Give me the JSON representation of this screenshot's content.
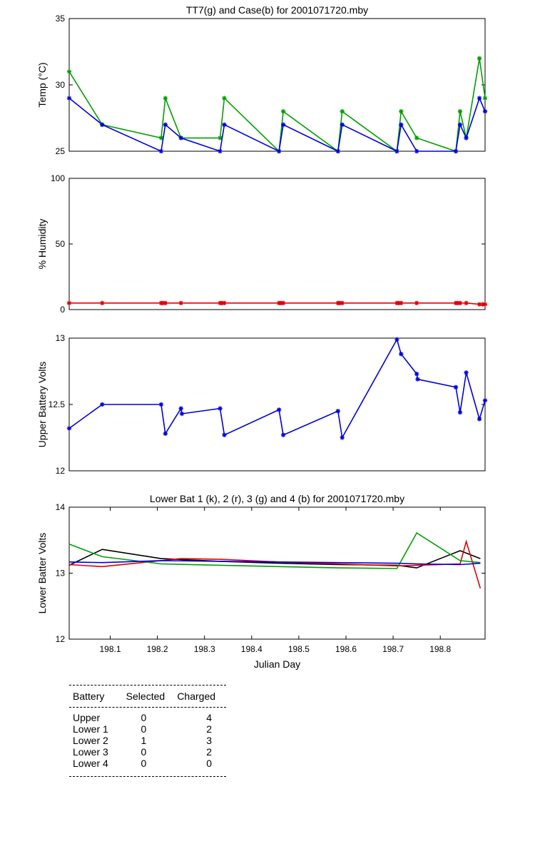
{
  "chart_data": [
    {
      "type": "line",
      "title": "TT7(g) and Case(b) for 2001071720.mby",
      "ylabel": "Temp  (°C)",
      "xlabel": "",
      "xlim": [
        198.013,
        198.895
      ],
      "ylim": [
        25,
        35
      ],
      "yticks": [
        25,
        30,
        35
      ],
      "xticks": [],
      "marker": "star",
      "series": [
        {
          "color": "#00a000",
          "x": [
            198.013,
            198.083,
            198.208,
            198.217,
            198.25,
            198.333,
            198.342,
            198.458,
            198.467,
            198.583,
            198.592,
            198.708,
            198.717,
            198.75,
            198.833,
            198.842,
            198.855,
            198.883,
            198.895
          ],
          "y": [
            31,
            27,
            26,
            29,
            26,
            26,
            29,
            25,
            28,
            25,
            28,
            25,
            28,
            26,
            25,
            28,
            26,
            32,
            29
          ]
        },
        {
          "color": "#0000e0",
          "x": [
            198.013,
            198.083,
            198.208,
            198.217,
            198.25,
            198.333,
            198.342,
            198.458,
            198.467,
            198.583,
            198.592,
            198.708,
            198.717,
            198.75,
            198.833,
            198.842,
            198.855,
            198.883,
            198.895
          ],
          "y": [
            29,
            27,
            25,
            27,
            26,
            25,
            27,
            25,
            27,
            25,
            27,
            25,
            27,
            25,
            25,
            27,
            26,
            29,
            28
          ]
        }
      ]
    },
    {
      "type": "line",
      "title": "",
      "ylabel": "% Humidity",
      "xlabel": "",
      "xlim": [
        198.013,
        198.895
      ],
      "ylim": [
        0,
        100
      ],
      "yticks": [
        0,
        50,
        100
      ],
      "xticks": [],
      "marker": "star",
      "series": [
        {
          "color": "#e00000",
          "x": [
            198.013,
            198.083,
            198.208,
            198.212,
            198.217,
            198.25,
            198.333,
            198.337,
            198.342,
            198.458,
            198.462,
            198.467,
            198.583,
            198.587,
            198.592,
            198.708,
            198.712,
            198.717,
            198.75,
            198.833,
            198.837,
            198.842,
            198.855,
            198.883,
            198.89,
            198.895
          ],
          "y": [
            5,
            5,
            5,
            5,
            5,
            5,
            5,
            5,
            5,
            5,
            5,
            5,
            5,
            5,
            5,
            5,
            5,
            5,
            5,
            5,
            5,
            5,
            5,
            4,
            4,
            4
          ]
        }
      ]
    },
    {
      "type": "line",
      "title": "",
      "ylabel": "Upper Battery Volts",
      "xlabel": "",
      "xlim": [
        198.013,
        198.895
      ],
      "ylim": [
        12,
        13
      ],
      "yticks": [
        12,
        12.5,
        13
      ],
      "ytick_labels": [
        "12",
        "12.5",
        "13"
      ],
      "xticks": [],
      "marker": "star",
      "series": [
        {
          "color": "#0000e0",
          "x": [
            198.013,
            198.083,
            198.208,
            198.217,
            198.25,
            198.252,
            198.333,
            198.342,
            198.458,
            198.467,
            198.583,
            198.592,
            198.708,
            198.717,
            198.75,
            198.752,
            198.833,
            198.842,
            198.855,
            198.883,
            198.895
          ],
          "y": [
            12.32,
            12.5,
            12.5,
            12.28,
            12.47,
            12.43,
            12.47,
            12.27,
            12.46,
            12.27,
            12.45,
            12.25,
            12.99,
            12.88,
            12.73,
            12.69,
            12.63,
            12.44,
            12.74,
            12.39,
            12.53
          ]
        }
      ]
    },
    {
      "type": "line",
      "title": "Lower Bat 1 (k), 2 (r), 3 (g) and 4 (b) for 2001071720.mby",
      "ylabel": "Lower Batter Volts",
      "xlabel": "Julian Day",
      "xlim": [
        198.013,
        198.895
      ],
      "ylim": [
        12,
        14
      ],
      "yticks": [
        12,
        13,
        14
      ],
      "xticks": [
        198.1,
        198.2,
        198.3,
        198.4,
        198.5,
        198.6,
        198.7,
        198.8
      ],
      "xtick_labels": [
        "198.1",
        "198.2",
        "198.3",
        "198.4",
        "198.5",
        "198.6",
        "198.7",
        "198.8"
      ],
      "marker": "none",
      "series": [
        {
          "color": "#000000",
          "x": [
            198.013,
            198.083,
            198.208,
            198.333,
            198.458,
            198.583,
            198.708,
            198.75,
            198.842,
            198.885
          ],
          "y": [
            13.12,
            13.36,
            13.22,
            13.18,
            13.15,
            13.13,
            13.12,
            13.08,
            13.34,
            13.22
          ]
        },
        {
          "color": "#e00000",
          "x": [
            198.013,
            198.083,
            198.208,
            198.25,
            198.333,
            198.458,
            198.583,
            198.708,
            198.75,
            198.842,
            198.855,
            198.885
          ],
          "y": [
            13.13,
            13.1,
            13.19,
            13.22,
            13.21,
            13.17,
            13.14,
            13.11,
            13.12,
            13.14,
            13.48,
            12.77
          ]
        },
        {
          "color": "#00a000",
          "x": [
            198.013,
            198.083,
            198.208,
            198.333,
            198.458,
            198.583,
            198.708,
            198.75,
            198.842,
            198.885
          ],
          "y": [
            13.44,
            13.25,
            13.14,
            13.12,
            13.1,
            13.08,
            13.07,
            13.61,
            13.19,
            13.16
          ]
        },
        {
          "color": "#0000e0",
          "x": [
            198.013,
            198.083,
            198.208,
            198.333,
            198.458,
            198.583,
            198.708,
            198.75,
            198.842,
            198.885
          ],
          "y": [
            13.17,
            13.16,
            13.19,
            13.18,
            13.17,
            13.16,
            13.15,
            13.14,
            13.13,
            13.15
          ]
        }
      ]
    }
  ],
  "summary": {
    "headers": [
      "Battery",
      "Selected",
      "Charged"
    ],
    "rows": [
      {
        "battery": "Upper",
        "selected": "0",
        "charged": "4"
      },
      {
        "battery": "Lower 1",
        "selected": "0",
        "charged": "2"
      },
      {
        "battery": "Lower 2",
        "selected": "1",
        "charged": "3"
      },
      {
        "battery": "Lower 3",
        "selected": "0",
        "charged": "2"
      },
      {
        "battery": "Lower 4",
        "selected": "0",
        "charged": "0"
      }
    ]
  }
}
